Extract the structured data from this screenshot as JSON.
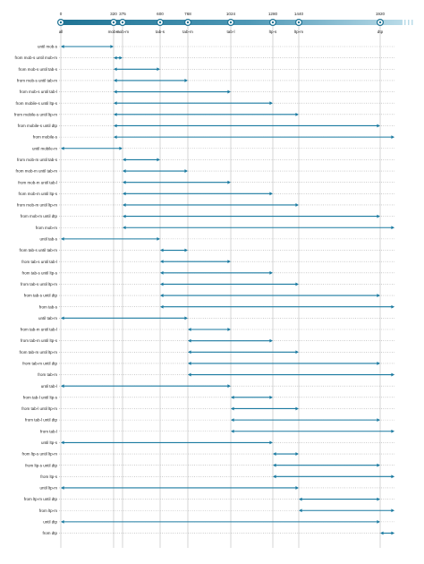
{
  "colors": {
    "primary": "#1a7aa0",
    "bar_dark": "#1f7394",
    "bar_light": "#b9dbe8",
    "text": "#222222",
    "grid": "#bbbbbb"
  },
  "scale": {
    "breakpoints": [
      {
        "id": "all",
        "value": 0,
        "value_label": "0",
        "name": "all"
      },
      {
        "id": "mob-s",
        "value": 320,
        "value_label": "320",
        "name": "mob-s"
      },
      {
        "id": "mob-m",
        "value": 375,
        "value_label": "375",
        "name": "mob-m"
      },
      {
        "id": "tab-s",
        "value": 600,
        "value_label": "600",
        "name": "tab-s"
      },
      {
        "id": "tab-m",
        "value": 768,
        "value_label": "768",
        "name": "tab-m"
      },
      {
        "id": "tab-l",
        "value": 1024,
        "value_label": "1024",
        "name": "tab-l"
      },
      {
        "id": "ltp-s",
        "value": 1280,
        "value_label": "1280",
        "name": "ltp-s"
      },
      {
        "id": "ltp-m",
        "value": 1440,
        "value_label": "1440",
        "name": "ltp-m"
      },
      {
        "id": "dtp",
        "value": 1920,
        "value_label": "1920",
        "name": "dtp"
      }
    ]
  },
  "ranges": [
    {
      "label": "until mob-s",
      "from": "all",
      "to": "mob-s"
    },
    {
      "label": "from mob-s until mob-m",
      "from": "mob-s",
      "to": "mob-m"
    },
    {
      "label": "from mob-s until tab-s",
      "from": "mob-s",
      "to": "tab-s"
    },
    {
      "label": "from mob-s until tab-m",
      "from": "mob-s",
      "to": "tab-m"
    },
    {
      "label": "from mob-s until tab-l",
      "from": "mob-s",
      "to": "tab-l"
    },
    {
      "label": "from mobile-s until ltp-s",
      "from": "mob-s",
      "to": "ltp-s"
    },
    {
      "label": "from mobile-s until ltp-m",
      "from": "mob-s",
      "to": "ltp-m"
    },
    {
      "label": "from mobile-s until dtp",
      "from": "mob-s",
      "to": "dtp"
    },
    {
      "label": "from mobile-s",
      "from": "mob-s",
      "to": "end"
    },
    {
      "label": "until mobile-m",
      "from": "all",
      "to": "mob-m"
    },
    {
      "label": "from mob-m until tab-s",
      "from": "mob-m",
      "to": "tab-s"
    },
    {
      "label": "from mob-m until tab-m",
      "from": "mob-m",
      "to": "tab-m"
    },
    {
      "label": "from mob-m until tab-l",
      "from": "mob-m",
      "to": "tab-l"
    },
    {
      "label": "from mob-m until ltp-s",
      "from": "mob-m",
      "to": "ltp-s"
    },
    {
      "label": "from mob-m until ltp-m",
      "from": "mob-m",
      "to": "ltp-m"
    },
    {
      "label": "from mob-m until dtp",
      "from": "mob-m",
      "to": "dtp"
    },
    {
      "label": "from mob-m",
      "from": "mob-m",
      "to": "end"
    },
    {
      "label": "until tab-s",
      "from": "all",
      "to": "tab-s"
    },
    {
      "label": "from tab-s until tab-m",
      "from": "tab-s",
      "to": "tab-m"
    },
    {
      "label": "from tab-s until tab-l",
      "from": "tab-s",
      "to": "tab-l"
    },
    {
      "label": "from tab-s until ltp-s",
      "from": "tab-s",
      "to": "ltp-s"
    },
    {
      "label": "from tab-s until ltp-m",
      "from": "tab-s",
      "to": "ltp-m"
    },
    {
      "label": "from tab-s until dtp",
      "from": "tab-s",
      "to": "dtp"
    },
    {
      "label": "from tab-s",
      "from": "tab-s",
      "to": "end"
    },
    {
      "label": "until tab-m",
      "from": "all",
      "to": "tab-m"
    },
    {
      "label": "from tab-m until tab-l",
      "from": "tab-m",
      "to": "tab-l"
    },
    {
      "label": "from tab-m until ltp-s",
      "from": "tab-m",
      "to": "ltp-s"
    },
    {
      "label": "from tab-m until ltp-m",
      "from": "tab-m",
      "to": "ltp-m"
    },
    {
      "label": "from tab-m until dtp",
      "from": "tab-m",
      "to": "dtp"
    },
    {
      "label": "from tab-m",
      "from": "tab-m",
      "to": "end"
    },
    {
      "label": "until tab-l",
      "from": "all",
      "to": "tab-l"
    },
    {
      "label": "from tab-l until ltp-s",
      "from": "tab-l",
      "to": "ltp-s"
    },
    {
      "label": "from tab-l until ltp-m",
      "from": "tab-l",
      "to": "ltp-m"
    },
    {
      "label": "from tab-l until dtp",
      "from": "tab-l",
      "to": "dtp"
    },
    {
      "label": "from tab-l",
      "from": "tab-l",
      "to": "end"
    },
    {
      "label": "until ltp-s",
      "from": "all",
      "to": "ltp-s"
    },
    {
      "label": "from ltp-s until ltp-m",
      "from": "ltp-s",
      "to": "ltp-m"
    },
    {
      "label": "from ltp-s until dtp",
      "from": "ltp-s",
      "to": "dtp"
    },
    {
      "label": "from ltp-s",
      "from": "ltp-s",
      "to": "end"
    },
    {
      "label": "until ltp-m",
      "from": "all",
      "to": "ltp-m"
    },
    {
      "label": "from ltp-m until dtp",
      "from": "ltp-m",
      "to": "dtp"
    },
    {
      "label": "from ltp-m",
      "from": "ltp-m",
      "to": "end"
    },
    {
      "label": "until dtp",
      "from": "all",
      "to": "dtp"
    },
    {
      "label": "from dtp",
      "from": "dtp",
      "to": "end"
    }
  ]
}
